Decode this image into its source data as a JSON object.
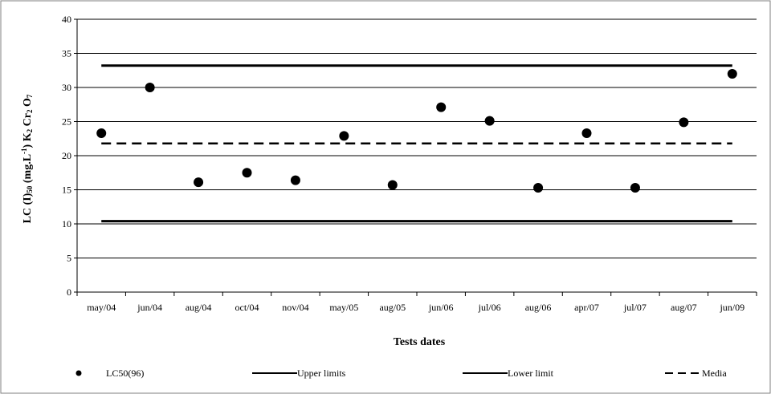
{
  "chart_data": {
    "type": "scatter",
    "xlabel": "Tests dates",
    "ylabel": "LC (I)50 (mg.L-1) K2 Cr2 O7",
    "ylim": [
      0,
      40
    ],
    "yticks": [
      0,
      5,
      10,
      15,
      20,
      25,
      30,
      35,
      40
    ],
    "grid": "horizontal",
    "legend_position": "bottom",
    "categories": [
      "may/04",
      "jun/04",
      "aug/04",
      "oct/04",
      "nov/04",
      "may/05",
      "aug/05",
      "jun/06",
      "jul/06",
      "aug/06",
      "apr/07",
      "jul/07",
      "aug/07",
      "jun/09"
    ],
    "series": [
      {
        "name": "LC50(96)",
        "kind": "points",
        "values": [
          23.3,
          30.0,
          16.1,
          17.5,
          16.4,
          22.9,
          15.7,
          27.1,
          25.1,
          15.3,
          23.3,
          15.3,
          24.9,
          32.0
        ]
      },
      {
        "name": "Upper limits",
        "kind": "hline",
        "value": 33.2
      },
      {
        "name": "Lower limit",
        "kind": "hline",
        "value": 10.4
      },
      {
        "name": "Media",
        "kind": "hline-dashed",
        "value": 21.8
      }
    ]
  }
}
